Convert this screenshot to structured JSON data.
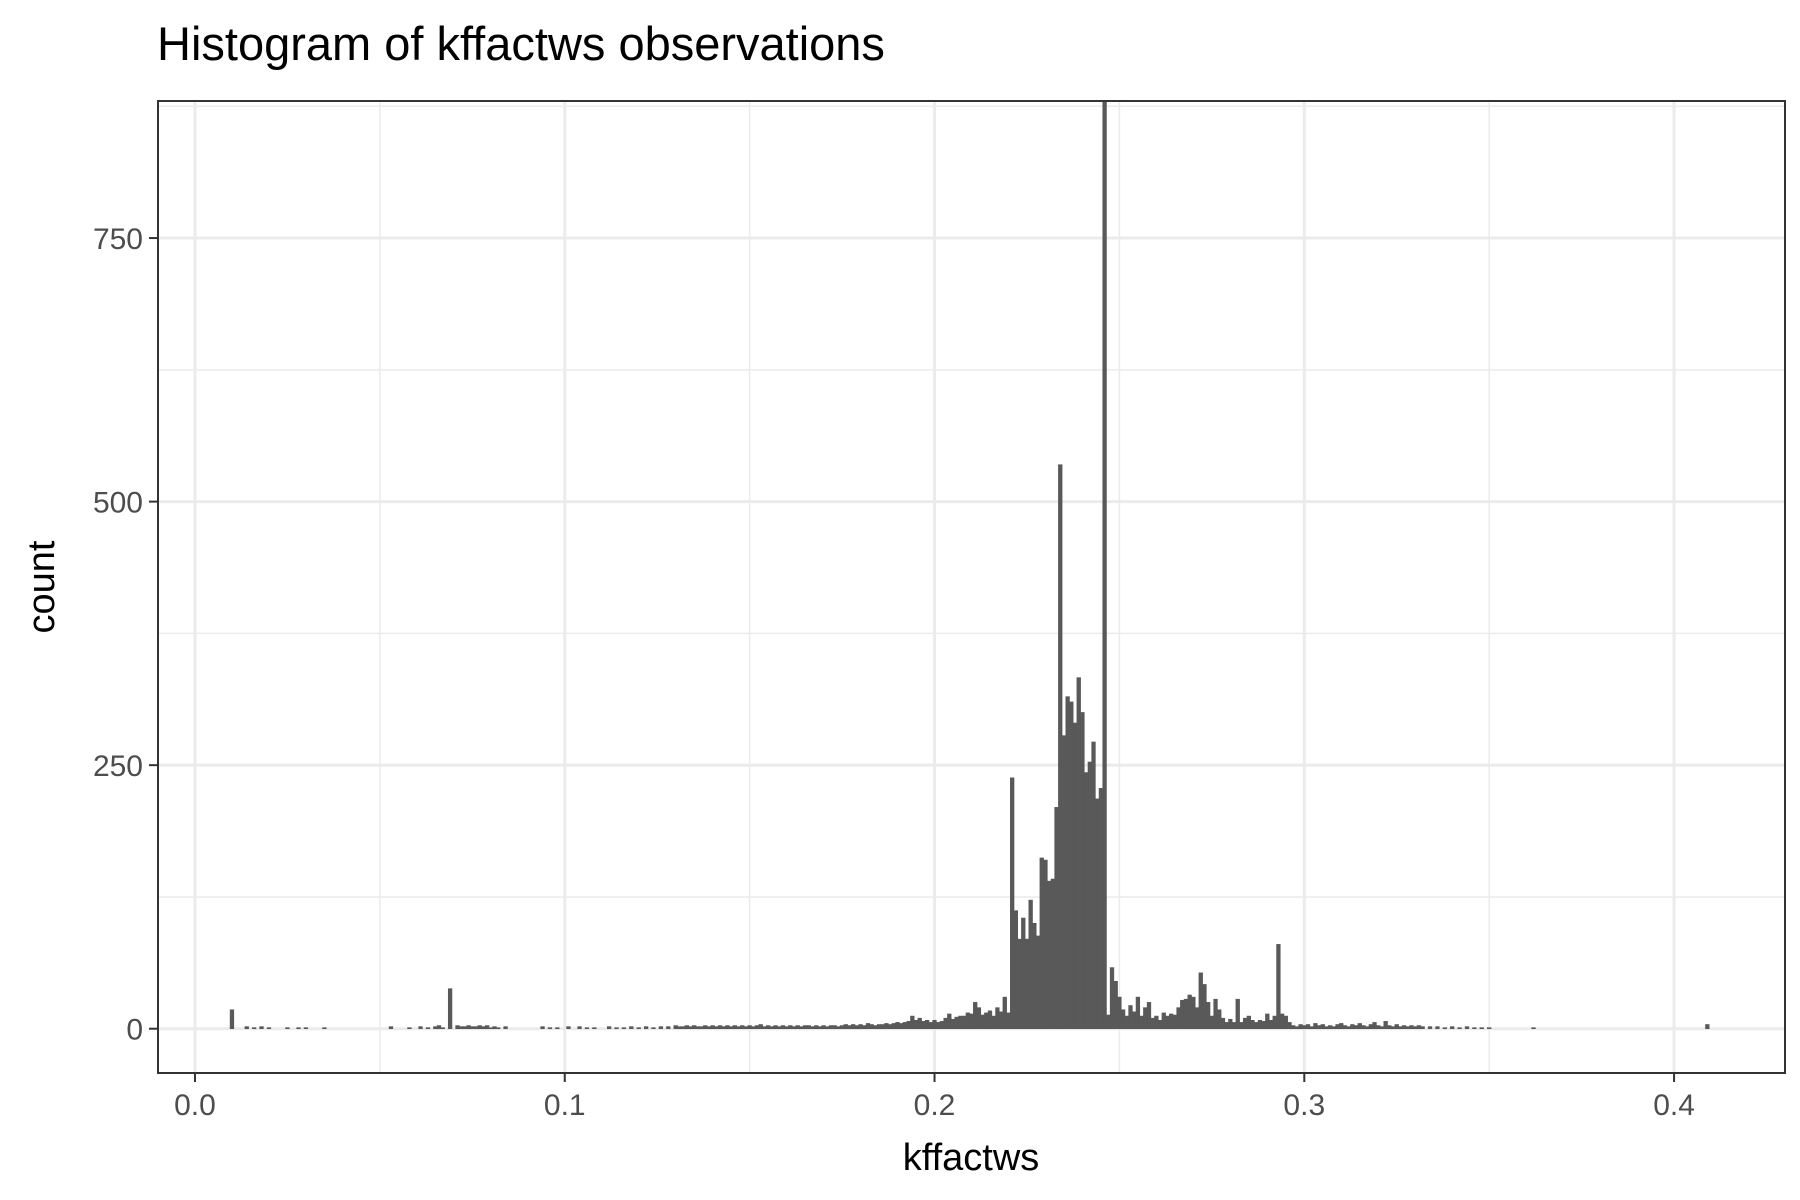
{
  "chart_data": {
    "type": "bar",
    "title": "Histogram of kffactws observations",
    "xlabel": "kffactws",
    "ylabel": "count",
    "xlim": [
      -0.01,
      0.43
    ],
    "ylim": [
      -42,
      880
    ],
    "x_ticks": [
      {
        "value": 0.0,
        "label": "0.0"
      },
      {
        "value": 0.1,
        "label": "0.1"
      },
      {
        "value": 0.2,
        "label": "0.2"
      },
      {
        "value": 0.3,
        "label": "0.3"
      },
      {
        "value": 0.4,
        "label": "0.4"
      }
    ],
    "y_ticks": [
      {
        "value": 0,
        "label": "0"
      },
      {
        "value": 250,
        "label": "250"
      },
      {
        "value": 500,
        "label": "500"
      },
      {
        "value": 750,
        "label": "750"
      }
    ],
    "x_minor": [
      0.05,
      0.15,
      0.25,
      0.35
    ],
    "y_minor": [
      125,
      375,
      625,
      875
    ],
    "grid": true,
    "legend": "none",
    "bar_color": "#595959",
    "bin_width": 0.001,
    "bins": [
      [
        0.01,
        18
      ],
      [
        0.014,
        2
      ],
      [
        0.016,
        1
      ],
      [
        0.018,
        2
      ],
      [
        0.02,
        1
      ],
      [
        0.025,
        1
      ],
      [
        0.028,
        1
      ],
      [
        0.03,
        1
      ],
      [
        0.035,
        1
      ],
      [
        0.053,
        2
      ],
      [
        0.058,
        1
      ],
      [
        0.061,
        2
      ],
      [
        0.063,
        1
      ],
      [
        0.065,
        2
      ],
      [
        0.066,
        3
      ],
      [
        0.067,
        1
      ],
      [
        0.069,
        38
      ],
      [
        0.071,
        3
      ],
      [
        0.072,
        2
      ],
      [
        0.073,
        2
      ],
      [
        0.074,
        3
      ],
      [
        0.075,
        2
      ],
      [
        0.076,
        2
      ],
      [
        0.077,
        3
      ],
      [
        0.078,
        2
      ],
      [
        0.079,
        3
      ],
      [
        0.08,
        1
      ],
      [
        0.081,
        2
      ],
      [
        0.082,
        1
      ],
      [
        0.084,
        2
      ],
      [
        0.094,
        2
      ],
      [
        0.096,
        1
      ],
      [
        0.098,
        1
      ],
      [
        0.101,
        2
      ],
      [
        0.104,
        2
      ],
      [
        0.106,
        1
      ],
      [
        0.108,
        1
      ],
      [
        0.112,
        2
      ],
      [
        0.114,
        1
      ],
      [
        0.116,
        1
      ],
      [
        0.118,
        2
      ],
      [
        0.12,
        1
      ],
      [
        0.122,
        2
      ],
      [
        0.124,
        1
      ],
      [
        0.126,
        2
      ],
      [
        0.128,
        2
      ],
      [
        0.13,
        3
      ],
      [
        0.131,
        2
      ],
      [
        0.132,
        2
      ],
      [
        0.133,
        3
      ],
      [
        0.134,
        2
      ],
      [
        0.135,
        3
      ],
      [
        0.136,
        2
      ],
      [
        0.137,
        2
      ],
      [
        0.138,
        3
      ],
      [
        0.139,
        2
      ],
      [
        0.14,
        3
      ],
      [
        0.141,
        2
      ],
      [
        0.142,
        3
      ],
      [
        0.143,
        2
      ],
      [
        0.144,
        3
      ],
      [
        0.145,
        2
      ],
      [
        0.146,
        3
      ],
      [
        0.147,
        2
      ],
      [
        0.148,
        3
      ],
      [
        0.149,
        2
      ],
      [
        0.15,
        3
      ],
      [
        0.151,
        2
      ],
      [
        0.152,
        3
      ],
      [
        0.153,
        4
      ],
      [
        0.154,
        2
      ],
      [
        0.155,
        3
      ],
      [
        0.156,
        2
      ],
      [
        0.157,
        3
      ],
      [
        0.158,
        2
      ],
      [
        0.159,
        3
      ],
      [
        0.16,
        2
      ],
      [
        0.161,
        3
      ],
      [
        0.162,
        2
      ],
      [
        0.163,
        3
      ],
      [
        0.164,
        2
      ],
      [
        0.165,
        3
      ],
      [
        0.166,
        3
      ],
      [
        0.167,
        2
      ],
      [
        0.168,
        3
      ],
      [
        0.169,
        2
      ],
      [
        0.17,
        3
      ],
      [
        0.171,
        2
      ],
      [
        0.172,
        3
      ],
      [
        0.173,
        3
      ],
      [
        0.174,
        2
      ],
      [
        0.175,
        3
      ],
      [
        0.176,
        4
      ],
      [
        0.177,
        3
      ],
      [
        0.178,
        4
      ],
      [
        0.179,
        3
      ],
      [
        0.18,
        4
      ],
      [
        0.181,
        3
      ],
      [
        0.182,
        5
      ],
      [
        0.183,
        4
      ],
      [
        0.184,
        3
      ],
      [
        0.185,
        4
      ],
      [
        0.186,
        4
      ],
      [
        0.187,
        5
      ],
      [
        0.188,
        4
      ],
      [
        0.189,
        5
      ],
      [
        0.19,
        6
      ],
      [
        0.191,
        5
      ],
      [
        0.192,
        6
      ],
      [
        0.193,
        7
      ],
      [
        0.194,
        12
      ],
      [
        0.195,
        8
      ],
      [
        0.196,
        10
      ],
      [
        0.197,
        7
      ],
      [
        0.198,
        8
      ],
      [
        0.199,
        6
      ],
      [
        0.2,
        8
      ],
      [
        0.201,
        6
      ],
      [
        0.202,
        7
      ],
      [
        0.203,
        10
      ],
      [
        0.204,
        14
      ],
      [
        0.205,
        9
      ],
      [
        0.206,
        11
      ],
      [
        0.207,
        12
      ],
      [
        0.208,
        12
      ],
      [
        0.209,
        15
      ],
      [
        0.21,
        14
      ],
      [
        0.211,
        25
      ],
      [
        0.212,
        20
      ],
      [
        0.213,
        13
      ],
      [
        0.214,
        15
      ],
      [
        0.215,
        17
      ],
      [
        0.216,
        12
      ],
      [
        0.217,
        20
      ],
      [
        0.218,
        16
      ],
      [
        0.219,
        30
      ],
      [
        0.22,
        15
      ],
      [
        0.221,
        238
      ],
      [
        0.222,
        112
      ],
      [
        0.223,
        85
      ],
      [
        0.224,
        105
      ],
      [
        0.225,
        85
      ],
      [
        0.226,
        122
      ],
      [
        0.227,
        100
      ],
      [
        0.228,
        88
      ],
      [
        0.229,
        162
      ],
      [
        0.23,
        160
      ],
      [
        0.231,
        140
      ],
      [
        0.232,
        142
      ],
      [
        0.233,
        210
      ],
      [
        0.234,
        535
      ],
      [
        0.235,
        278
      ],
      [
        0.236,
        315
      ],
      [
        0.237,
        310
      ],
      [
        0.238,
        290
      ],
      [
        0.239,
        333
      ],
      [
        0.24,
        300
      ],
      [
        0.241,
        243
      ],
      [
        0.242,
        253
      ],
      [
        0.243,
        272
      ],
      [
        0.244,
        218
      ],
      [
        0.245,
        228
      ],
      [
        0.246,
        880
      ],
      [
        0.247,
        13
      ],
      [
        0.248,
        58
      ],
      [
        0.249,
        45
      ],
      [
        0.25,
        30
      ],
      [
        0.251,
        18
      ],
      [
        0.252,
        12
      ],
      [
        0.253,
        22
      ],
      [
        0.254,
        16
      ],
      [
        0.255,
        30
      ],
      [
        0.256,
        12
      ],
      [
        0.257,
        20
      ],
      [
        0.258,
        25
      ],
      [
        0.259,
        10
      ],
      [
        0.26,
        12
      ],
      [
        0.261,
        8
      ],
      [
        0.262,
        15
      ],
      [
        0.263,
        12
      ],
      [
        0.264,
        14
      ],
      [
        0.265,
        13
      ],
      [
        0.266,
        20
      ],
      [
        0.267,
        27
      ],
      [
        0.268,
        28
      ],
      [
        0.269,
        32
      ],
      [
        0.27,
        30
      ],
      [
        0.271,
        20
      ],
      [
        0.272,
        53
      ],
      [
        0.273,
        42
      ],
      [
        0.274,
        25
      ],
      [
        0.275,
        12
      ],
      [
        0.276,
        28
      ],
      [
        0.277,
        18
      ],
      [
        0.278,
        10
      ],
      [
        0.279,
        6
      ],
      [
        0.28,
        9
      ],
      [
        0.281,
        6
      ],
      [
        0.282,
        28
      ],
      [
        0.283,
        6
      ],
      [
        0.284,
        10
      ],
      [
        0.285,
        12
      ],
      [
        0.286,
        8
      ],
      [
        0.287,
        6
      ],
      [
        0.288,
        8
      ],
      [
        0.289,
        7
      ],
      [
        0.29,
        14
      ],
      [
        0.291,
        8
      ],
      [
        0.292,
        12
      ],
      [
        0.293,
        80
      ],
      [
        0.294,
        14
      ],
      [
        0.295,
        12
      ],
      [
        0.296,
        6
      ],
      [
        0.297,
        3
      ],
      [
        0.298,
        2
      ],
      [
        0.299,
        4
      ],
      [
        0.3,
        3
      ],
      [
        0.301,
        4
      ],
      [
        0.302,
        2
      ],
      [
        0.303,
        5
      ],
      [
        0.304,
        3
      ],
      [
        0.305,
        4
      ],
      [
        0.306,
        2
      ],
      [
        0.307,
        3
      ],
      [
        0.308,
        2
      ],
      [
        0.309,
        4
      ],
      [
        0.31,
        5
      ],
      [
        0.311,
        3
      ],
      [
        0.312,
        2
      ],
      [
        0.313,
        4
      ],
      [
        0.314,
        3
      ],
      [
        0.315,
        5
      ],
      [
        0.316,
        3
      ],
      [
        0.317,
        2
      ],
      [
        0.318,
        4
      ],
      [
        0.319,
        6
      ],
      [
        0.32,
        3
      ],
      [
        0.321,
        2
      ],
      [
        0.322,
        7
      ],
      [
        0.323,
        3
      ],
      [
        0.324,
        2
      ],
      [
        0.325,
        4
      ],
      [
        0.326,
        2
      ],
      [
        0.327,
        3
      ],
      [
        0.328,
        2
      ],
      [
        0.329,
        3
      ],
      [
        0.33,
        2
      ],
      [
        0.331,
        3
      ],
      [
        0.332,
        2
      ],
      [
        0.334,
        2
      ],
      [
        0.336,
        2
      ],
      [
        0.338,
        1
      ],
      [
        0.34,
        2
      ],
      [
        0.342,
        1
      ],
      [
        0.344,
        2
      ],
      [
        0.346,
        1
      ],
      [
        0.348,
        1
      ],
      [
        0.35,
        1
      ],
      [
        0.362,
        1
      ],
      [
        0.409,
        4
      ]
    ]
  }
}
